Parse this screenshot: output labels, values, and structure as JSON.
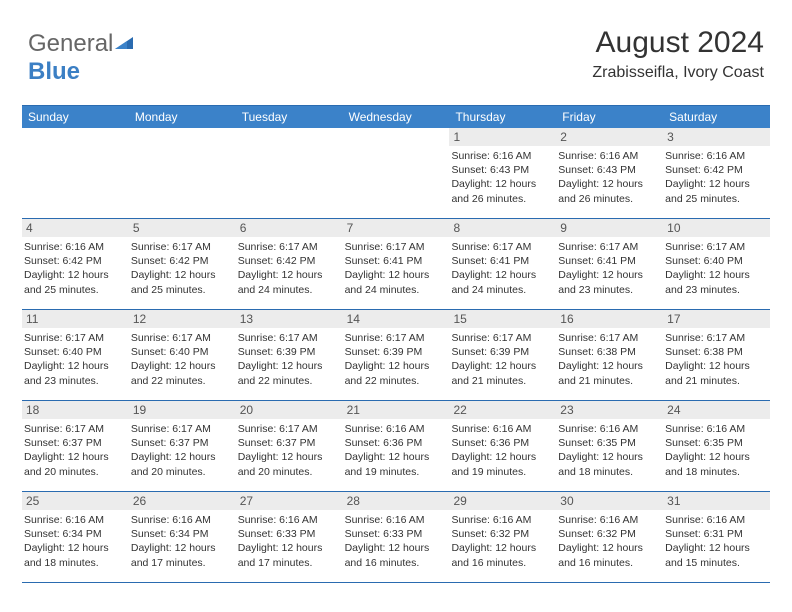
{
  "brand": {
    "part1": "General",
    "part2": "Blue"
  },
  "colors": {
    "header_bg": "#3b82c9",
    "border": "#2a6bb0",
    "daynum_bg": "#ececec",
    "text": "#333333",
    "logo_gray": "#666666",
    "logo_blue": "#3b7fc4"
  },
  "title": "August 2024",
  "location": "Zrabisseifla, Ivory Coast",
  "weekday_labels": [
    "Sunday",
    "Monday",
    "Tuesday",
    "Wednesday",
    "Thursday",
    "Friday",
    "Saturday"
  ],
  "weeks": [
    [
      {
        "num": "",
        "lines": []
      },
      {
        "num": "",
        "lines": []
      },
      {
        "num": "",
        "lines": []
      },
      {
        "num": "",
        "lines": []
      },
      {
        "num": "1",
        "lines": [
          "Sunrise: 6:16 AM",
          "Sunset: 6:43 PM",
          "Daylight: 12 hours and 26 minutes."
        ]
      },
      {
        "num": "2",
        "lines": [
          "Sunrise: 6:16 AM",
          "Sunset: 6:43 PM",
          "Daylight: 12 hours and 26 minutes."
        ]
      },
      {
        "num": "3",
        "lines": [
          "Sunrise: 6:16 AM",
          "Sunset: 6:42 PM",
          "Daylight: 12 hours and 25 minutes."
        ]
      }
    ],
    [
      {
        "num": "4",
        "lines": [
          "Sunrise: 6:16 AM",
          "Sunset: 6:42 PM",
          "Daylight: 12 hours and 25 minutes."
        ]
      },
      {
        "num": "5",
        "lines": [
          "Sunrise: 6:17 AM",
          "Sunset: 6:42 PM",
          "Daylight: 12 hours and 25 minutes."
        ]
      },
      {
        "num": "6",
        "lines": [
          "Sunrise: 6:17 AM",
          "Sunset: 6:42 PM",
          "Daylight: 12 hours and 24 minutes."
        ]
      },
      {
        "num": "7",
        "lines": [
          "Sunrise: 6:17 AM",
          "Sunset: 6:41 PM",
          "Daylight: 12 hours and 24 minutes."
        ]
      },
      {
        "num": "8",
        "lines": [
          "Sunrise: 6:17 AM",
          "Sunset: 6:41 PM",
          "Daylight: 12 hours and 24 minutes."
        ]
      },
      {
        "num": "9",
        "lines": [
          "Sunrise: 6:17 AM",
          "Sunset: 6:41 PM",
          "Daylight: 12 hours and 23 minutes."
        ]
      },
      {
        "num": "10",
        "lines": [
          "Sunrise: 6:17 AM",
          "Sunset: 6:40 PM",
          "Daylight: 12 hours and 23 minutes."
        ]
      }
    ],
    [
      {
        "num": "11",
        "lines": [
          "Sunrise: 6:17 AM",
          "Sunset: 6:40 PM",
          "Daylight: 12 hours and 23 minutes."
        ]
      },
      {
        "num": "12",
        "lines": [
          "Sunrise: 6:17 AM",
          "Sunset: 6:40 PM",
          "Daylight: 12 hours and 22 minutes."
        ]
      },
      {
        "num": "13",
        "lines": [
          "Sunrise: 6:17 AM",
          "Sunset: 6:39 PM",
          "Daylight: 12 hours and 22 minutes."
        ]
      },
      {
        "num": "14",
        "lines": [
          "Sunrise: 6:17 AM",
          "Sunset: 6:39 PM",
          "Daylight: 12 hours and 22 minutes."
        ]
      },
      {
        "num": "15",
        "lines": [
          "Sunrise: 6:17 AM",
          "Sunset: 6:39 PM",
          "Daylight: 12 hours and 21 minutes."
        ]
      },
      {
        "num": "16",
        "lines": [
          "Sunrise: 6:17 AM",
          "Sunset: 6:38 PM",
          "Daylight: 12 hours and 21 minutes."
        ]
      },
      {
        "num": "17",
        "lines": [
          "Sunrise: 6:17 AM",
          "Sunset: 6:38 PM",
          "Daylight: 12 hours and 21 minutes."
        ]
      }
    ],
    [
      {
        "num": "18",
        "lines": [
          "Sunrise: 6:17 AM",
          "Sunset: 6:37 PM",
          "Daylight: 12 hours and 20 minutes."
        ]
      },
      {
        "num": "19",
        "lines": [
          "Sunrise: 6:17 AM",
          "Sunset: 6:37 PM",
          "Daylight: 12 hours and 20 minutes."
        ]
      },
      {
        "num": "20",
        "lines": [
          "Sunrise: 6:17 AM",
          "Sunset: 6:37 PM",
          "Daylight: 12 hours and 20 minutes."
        ]
      },
      {
        "num": "21",
        "lines": [
          "Sunrise: 6:16 AM",
          "Sunset: 6:36 PM",
          "Daylight: 12 hours and 19 minutes."
        ]
      },
      {
        "num": "22",
        "lines": [
          "Sunrise: 6:16 AM",
          "Sunset: 6:36 PM",
          "Daylight: 12 hours and 19 minutes."
        ]
      },
      {
        "num": "23",
        "lines": [
          "Sunrise: 6:16 AM",
          "Sunset: 6:35 PM",
          "Daylight: 12 hours and 18 minutes."
        ]
      },
      {
        "num": "24",
        "lines": [
          "Sunrise: 6:16 AM",
          "Sunset: 6:35 PM",
          "Daylight: 12 hours and 18 minutes."
        ]
      }
    ],
    [
      {
        "num": "25",
        "lines": [
          "Sunrise: 6:16 AM",
          "Sunset: 6:34 PM",
          "Daylight: 12 hours and 18 minutes."
        ]
      },
      {
        "num": "26",
        "lines": [
          "Sunrise: 6:16 AM",
          "Sunset: 6:34 PM",
          "Daylight: 12 hours and 17 minutes."
        ]
      },
      {
        "num": "27",
        "lines": [
          "Sunrise: 6:16 AM",
          "Sunset: 6:33 PM",
          "Daylight: 12 hours and 17 minutes."
        ]
      },
      {
        "num": "28",
        "lines": [
          "Sunrise: 6:16 AM",
          "Sunset: 6:33 PM",
          "Daylight: 12 hours and 16 minutes."
        ]
      },
      {
        "num": "29",
        "lines": [
          "Sunrise: 6:16 AM",
          "Sunset: 6:32 PM",
          "Daylight: 12 hours and 16 minutes."
        ]
      },
      {
        "num": "30",
        "lines": [
          "Sunrise: 6:16 AM",
          "Sunset: 6:32 PM",
          "Daylight: 12 hours and 16 minutes."
        ]
      },
      {
        "num": "31",
        "lines": [
          "Sunrise: 6:16 AM",
          "Sunset: 6:31 PM",
          "Daylight: 12 hours and 15 minutes."
        ]
      }
    ]
  ]
}
